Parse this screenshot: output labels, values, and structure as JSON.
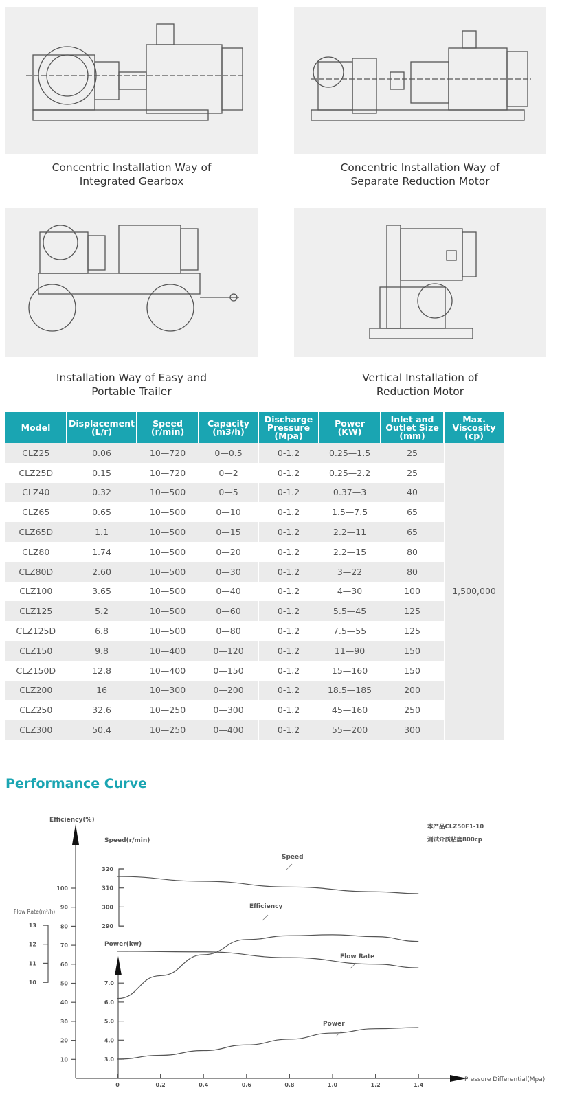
{
  "installations": [
    {
      "caption_l1": "Concentric Installation Way of",
      "caption_l2": "Integrated Gearbox"
    },
    {
      "caption_l1": "Concentric Installation Way of",
      "caption_l2": "Separate Reduction Motor"
    },
    {
      "caption_l1": "Installation Way of Easy and",
      "caption_l2": "Portable Trailer"
    },
    {
      "caption_l1": "Vertical Installation of",
      "caption_l2": "Reduction Motor"
    }
  ],
  "table": {
    "header_color": "#1aa5b2",
    "headers": [
      [
        "Model",
        ""
      ],
      [
        "Displacement",
        "(L/r)"
      ],
      [
        "Speed",
        "(r/min)"
      ],
      [
        "Capacity",
        "(m3/h)"
      ],
      [
        "Discharge Pressure",
        "(Mpa)"
      ],
      [
        "Power",
        "(KW)"
      ],
      [
        "Inlet and Outlet Size",
        "(mm)"
      ],
      [
        "Max. Viscosity",
        "(cp)"
      ]
    ],
    "rows": [
      [
        "CLZ25",
        "0.06",
        "10—720",
        "0—0.5",
        "0-1.2",
        "0.25—1.5",
        "25"
      ],
      [
        "CLZ25D",
        "0.15",
        "10—720",
        "0—2",
        "0-1.2",
        "0.25—2.2",
        "25"
      ],
      [
        "CLZ40",
        "0.32",
        "10—500",
        "0—5",
        "0-1.2",
        "0.37—3",
        "40"
      ],
      [
        "CLZ65",
        "0.65",
        "10—500",
        "0—10",
        "0-1.2",
        "1.5—7.5",
        "65"
      ],
      [
        "CLZ65D",
        "1.1",
        "10—500",
        "0—15",
        "0-1.2",
        "2.2—11",
        "65"
      ],
      [
        "CLZ80",
        "1.74",
        "10—500",
        "0—20",
        "0-1.2",
        "2.2—15",
        "80"
      ],
      [
        "CLZ80D",
        "2.60",
        "10—500",
        "0—30",
        "0-1.2",
        "3—22",
        "80"
      ],
      [
        "CLZ100",
        "3.65",
        "10—500",
        "0—40",
        "0-1.2",
        "4—30",
        "100"
      ],
      [
        "CLZ125",
        "5.2",
        "10—500",
        "0—60",
        "0-1.2",
        "5.5—45",
        "125"
      ],
      [
        "CLZ125D",
        "6.8",
        "10—500",
        "0—80",
        "0-1.2",
        "7.5—55",
        "125"
      ],
      [
        "CLZ150",
        "9.8",
        "10—400",
        "0—120",
        "0-1.2",
        "11—90",
        "150"
      ],
      [
        "CLZ150D",
        "12.8",
        "10—400",
        "0—150",
        "0-1.2",
        "15—160",
        "150"
      ],
      [
        "CLZ200",
        "16",
        "10—300",
        "0—200",
        "0-1.2",
        "18.5—185",
        "200"
      ],
      [
        "CLZ250",
        "32.6",
        "10—250",
        "0—300",
        "0-1.2",
        "45—160",
        "250"
      ],
      [
        "CLZ300",
        "50.4",
        "10—250",
        "0—400",
        "0-1.2",
        "55—200",
        "300"
      ]
    ],
    "max_viscosity": "1,500,000"
  },
  "performance_title": "Performance Curve",
  "chart_data": {
    "type": "line",
    "xlabel": "Pressure Differential(Mpa)",
    "x_ticks": [
      "0",
      "0.2",
      "0.4",
      "0.6",
      "0.8",
      "1.0",
      "1.2",
      "1.4"
    ],
    "xlim": [
      0,
      1.4
    ],
    "note_l1": "本产品CLZ50F1-10",
    "note_l2": "测试介质粘度800cp",
    "axes": {
      "efficiency": {
        "label": "Efficiency(%)",
        "ticks": [
          "10",
          "20",
          "30",
          "40",
          "50",
          "60",
          "70",
          "80",
          "90",
          "100"
        ]
      },
      "speed": {
        "label": "Speed(r/min)",
        "ticks": [
          "290",
          "300",
          "310",
          "320"
        ],
        "ylim": [
          290,
          320
        ]
      },
      "power": {
        "label": "Power(kw)",
        "ticks": [
          "3.0",
          "4.0",
          "5.0",
          "6.0",
          "7.0"
        ]
      },
      "flow": {
        "label": "Flow Rate(m³/h)",
        "ticks": [
          "10",
          "11",
          "12",
          "13"
        ]
      }
    },
    "series": [
      {
        "name": "Speed",
        "axis": "speed",
        "x": [
          0,
          0.4,
          0.8,
          1.2,
          1.4
        ],
        "y": [
          316,
          313.5,
          310.5,
          308,
          307
        ]
      },
      {
        "name": "Efficiency",
        "axis": "efficiency",
        "x": [
          0,
          0.2,
          0.4,
          0.6,
          0.8,
          1.0,
          1.2,
          1.4
        ],
        "y": [
          42,
          54,
          65,
          73,
          75,
          75.5,
          74.5,
          72
        ]
      },
      {
        "name": "Flow Rate",
        "axis": "flow",
        "x": [
          0,
          0.4,
          0.8,
          1.2,
          1.4
        ],
        "y": [
          11.63,
          11.6,
          11.3,
          10.95,
          10.76
        ]
      },
      {
        "name": "Power",
        "axis": "power",
        "x": [
          0,
          0.2,
          0.4,
          0.6,
          0.8,
          1.0,
          1.2,
          1.4
        ],
        "y": [
          3.0,
          3.2,
          3.45,
          3.75,
          4.05,
          4.37,
          4.6,
          4.66
        ]
      }
    ],
    "grid": false
  }
}
